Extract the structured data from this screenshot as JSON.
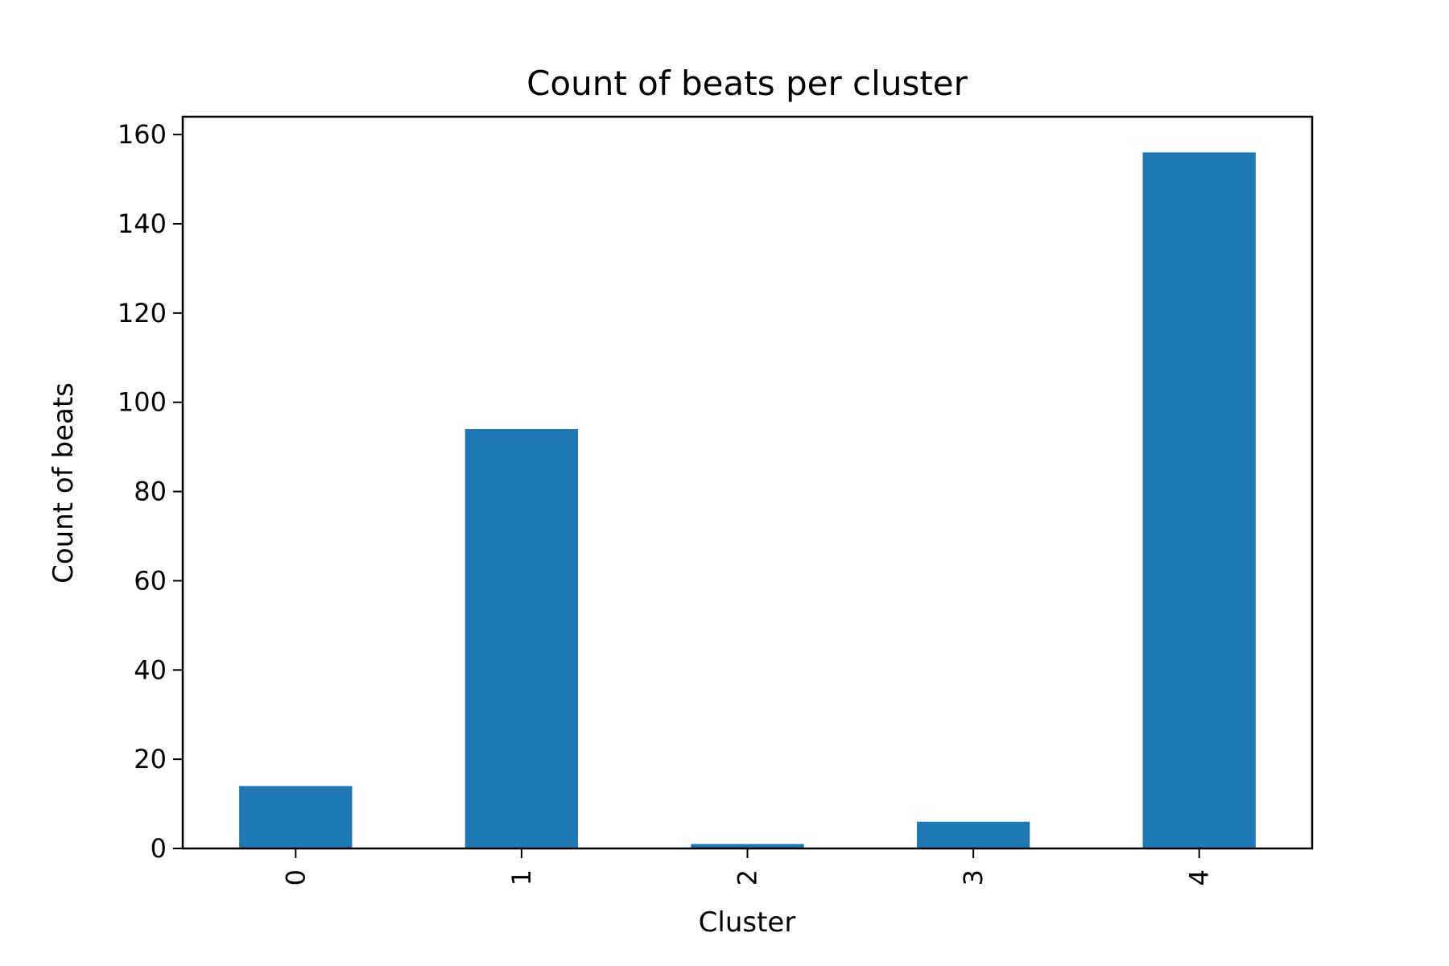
{
  "chart_data": {
    "type": "bar",
    "title": "Count of beats per cluster",
    "xlabel": "Cluster",
    "ylabel": "Count of beats",
    "categories": [
      "0",
      "1",
      "2",
      "3",
      "4"
    ],
    "values": [
      14,
      94,
      1,
      6,
      156
    ],
    "ylim": [
      0,
      164
    ],
    "yticks": [
      0,
      20,
      40,
      60,
      80,
      100,
      120,
      140,
      160
    ],
    "grid": false,
    "legend": "none",
    "bar_color": "#1f77b4"
  }
}
